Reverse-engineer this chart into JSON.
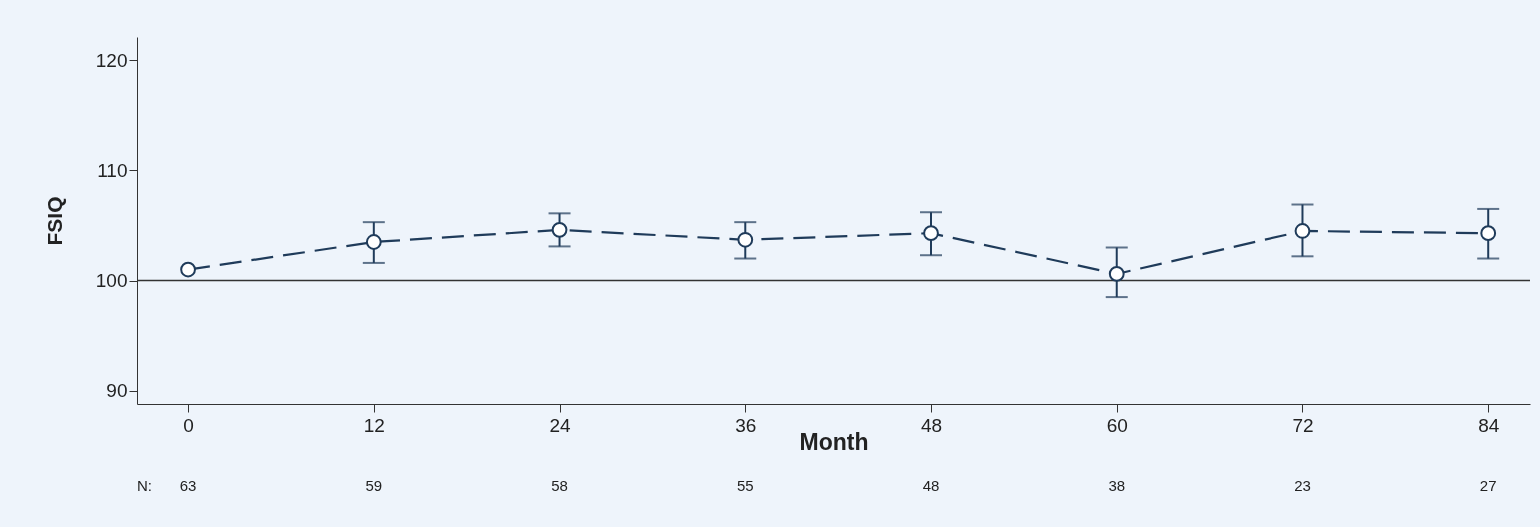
{
  "chart_data": {
    "type": "line",
    "xlabel": "Month",
    "ylabel": "FSIQ",
    "x": [
      0,
      12,
      24,
      36,
      48,
      60,
      72,
      84
    ],
    "series": [
      {
        "color": "#1f3b5a",
        "values": [
          101.0,
          103.5,
          104.6,
          103.7,
          104.3,
          100.6,
          104.5,
          104.3
        ],
        "errors": [
          null,
          [
            101.6,
            105.3
          ],
          [
            103.1,
            106.1
          ],
          [
            102.0,
            105.3
          ],
          [
            102.3,
            106.2
          ],
          [
            98.5,
            103.0
          ],
          [
            102.2,
            106.9
          ],
          [
            102.0,
            106.5
          ]
        ]
      }
    ],
    "xlim": [
      -3.3,
      86.7
    ],
    "xticks": [
      0,
      12,
      24,
      36,
      48,
      60,
      72,
      84
    ],
    "ylim": [
      88.8,
      122.1
    ],
    "yticks": [
      90,
      100,
      110,
      120
    ],
    "ref_lines": [
      {
        "axis": "y",
        "value": 100,
        "color": "#333333",
        "line_style": "solid"
      }
    ],
    "annotations": [
      "N:",
      "63",
      "59",
      "58",
      "55",
      "48",
      "38",
      "23",
      "27"
    ],
    "marker": "circle",
    "line_style": "dashed",
    "grid": false
  }
}
